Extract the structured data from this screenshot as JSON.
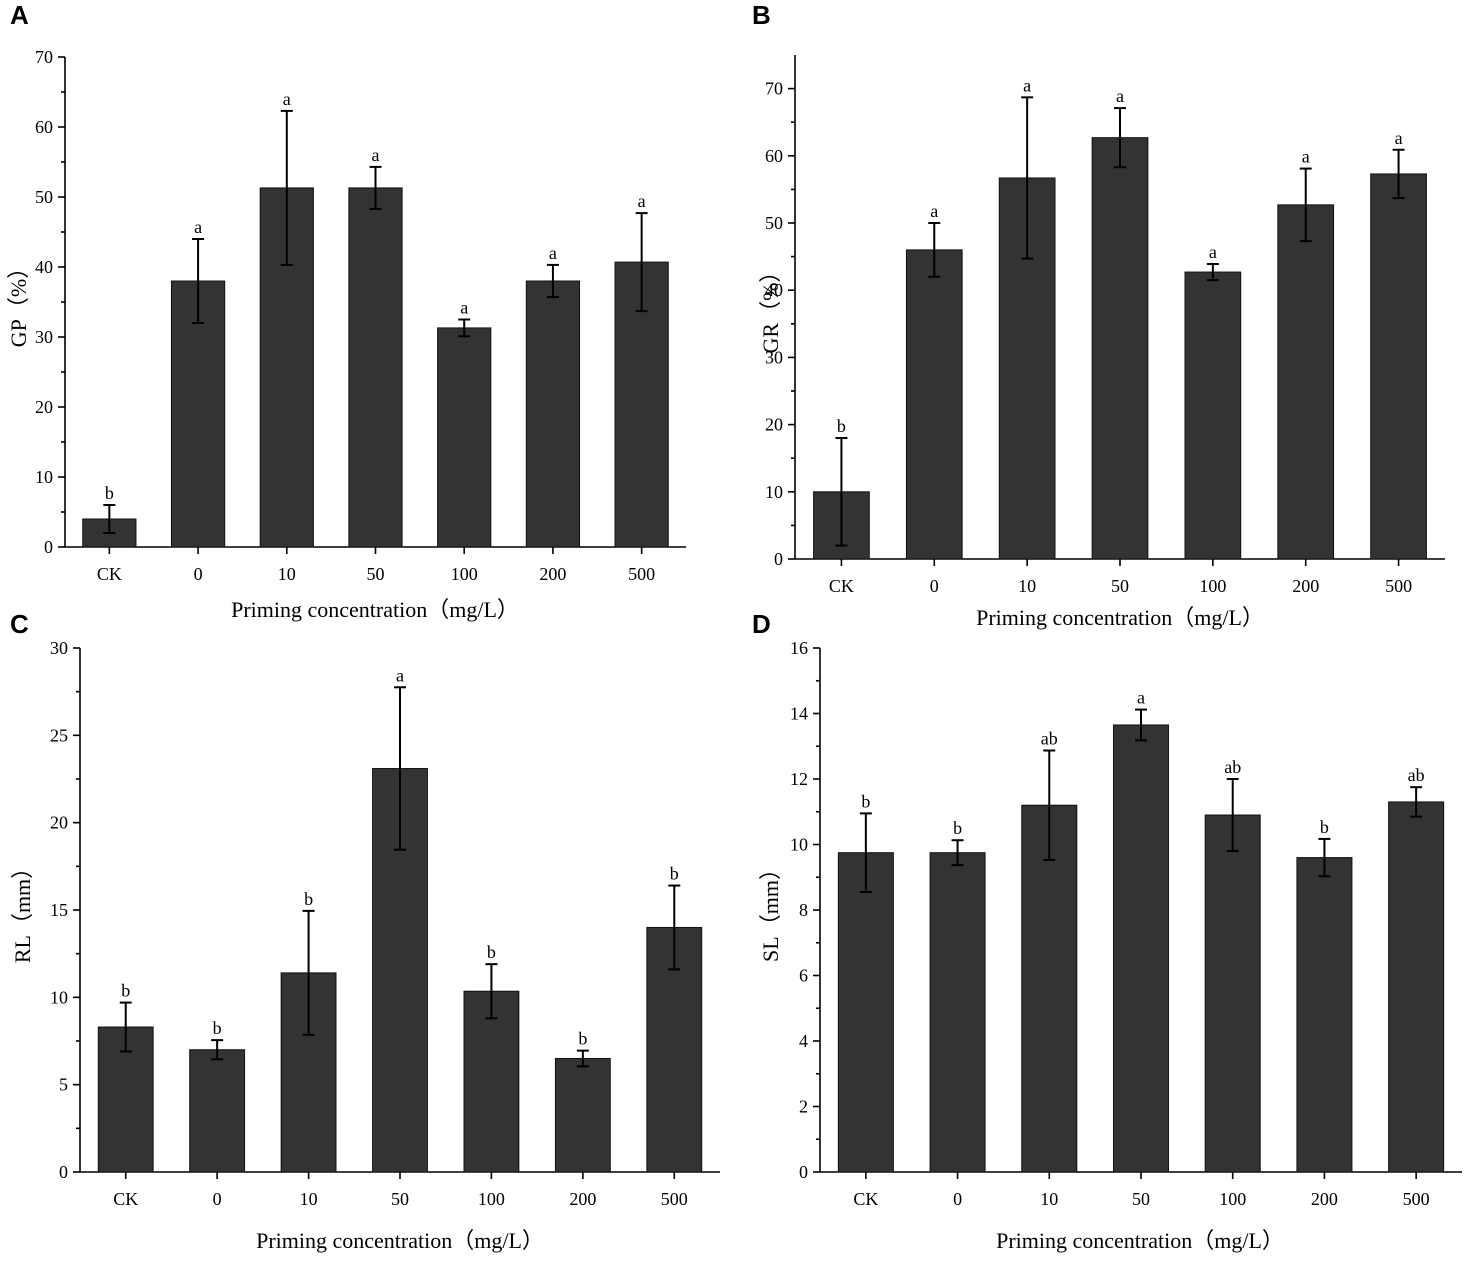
{
  "figure": {
    "xlabel": "Priming concentration（mg/L）",
    "categories": [
      "CK",
      "0",
      "10",
      "50",
      "100",
      "200",
      "500"
    ]
  },
  "colors": {
    "bar": "#333333",
    "axis": "#000000"
  },
  "chart_data": [
    {
      "panel": "A",
      "type": "bar",
      "ylabel": "GP（%）",
      "xlabel": "Priming concentration（mg/L）",
      "categories": [
        "CK",
        "0",
        "10",
        "50",
        "100",
        "200",
        "500"
      ],
      "values": [
        4,
        38,
        51.3,
        51.3,
        31.3,
        38,
        40.7
      ],
      "errors": [
        2,
        6,
        11,
        3,
        1.2,
        2.3,
        7
      ],
      "letters": [
        "b",
        "a",
        "a",
        "a",
        "a",
        "a",
        "a"
      ],
      "ylim": [
        0,
        70
      ],
      "yticks": [
        0,
        10,
        20,
        30,
        40,
        50,
        60,
        70
      ]
    },
    {
      "panel": "B",
      "type": "bar",
      "ylabel": "GR（%）",
      "xlabel": "Priming concentration（mg/L）",
      "categories": [
        "CK",
        "0",
        "10",
        "50",
        "100",
        "200",
        "500"
      ],
      "values": [
        10,
        46,
        56.7,
        62.7,
        42.7,
        52.7,
        57.3
      ],
      "errors": [
        8,
        4,
        12,
        4.4,
        1.2,
        5.4,
        3.6
      ],
      "letters": [
        "b",
        "a",
        "a",
        "a",
        "a",
        "a",
        "a"
      ],
      "ylim": [
        0,
        75
      ],
      "yticks": [
        0,
        10,
        20,
        30,
        40,
        50,
        60,
        70
      ]
    },
    {
      "panel": "C",
      "type": "bar",
      "ylabel": "RL（mm）",
      "xlabel": "Priming concentration（mg/L）",
      "categories": [
        "CK",
        "0",
        "10",
        "50",
        "100",
        "200",
        "500"
      ],
      "values": [
        8.3,
        7,
        11.4,
        23.1,
        10.35,
        6.5,
        14
      ],
      "errors": [
        1.4,
        0.55,
        3.55,
        4.65,
        1.55,
        0.45,
        2.4
      ],
      "letters": [
        "b",
        "b",
        "b",
        "a",
        "b",
        "b",
        "b"
      ],
      "ylim": [
        0,
        30
      ],
      "yticks": [
        0,
        5,
        10,
        15,
        20,
        25,
        30
      ]
    },
    {
      "panel": "D",
      "type": "bar",
      "ylabel": "SL（mm）",
      "xlabel": "Priming concentration（mg/L）",
      "categories": [
        "CK",
        "0",
        "10",
        "50",
        "100",
        "200",
        "500"
      ],
      "values": [
        9.75,
        9.75,
        11.2,
        13.65,
        10.9,
        9.6,
        11.3
      ],
      "errors": [
        1.2,
        0.38,
        1.67,
        0.47,
        1.1,
        0.57,
        0.45
      ],
      "letters": [
        "b",
        "b",
        "ab",
        "a",
        "ab",
        "b",
        "ab"
      ],
      "ylim": [
        0,
        16
      ],
      "yticks": [
        0,
        2,
        4,
        6,
        8,
        10,
        12,
        14,
        16
      ]
    }
  ]
}
